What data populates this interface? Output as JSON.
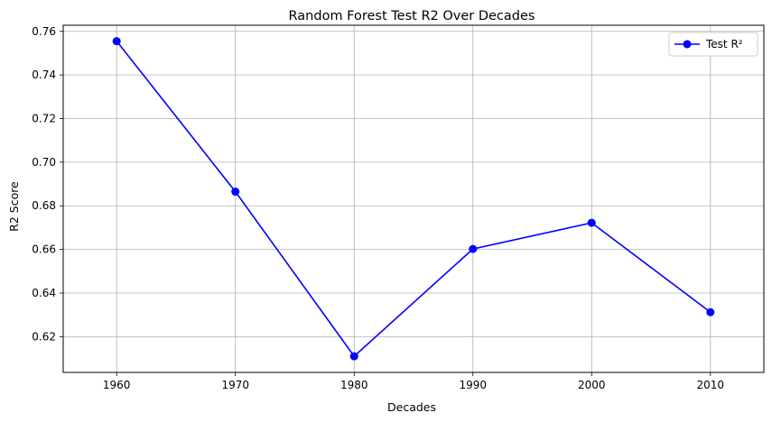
{
  "chart_data": {
    "type": "line",
    "title": "Random Forest Test R2 Over Decades",
    "xlabel": "Decades",
    "ylabel": "R2 Score",
    "x": [
      1960,
      1970,
      1980,
      1990,
      2000,
      2010
    ],
    "series": [
      {
        "name": "Test R²",
        "values": [
          0.7555,
          0.6865,
          0.611,
          0.6602,
          0.6722,
          0.6312
        ],
        "color": "#0000ff",
        "marker": "circle"
      }
    ],
    "xticks": [
      "1960",
      "1970",
      "1980",
      "1990",
      "2000",
      "2010"
    ],
    "yticks": [
      "0.62",
      "0.64",
      "0.66",
      "0.68",
      "0.70",
      "0.72",
      "0.74",
      "0.76"
    ],
    "xlim": [
      1955.5,
      2014.5
    ],
    "ylim": [
      0.6036,
      0.7628
    ],
    "grid": true,
    "legend_position": "top-right"
  }
}
